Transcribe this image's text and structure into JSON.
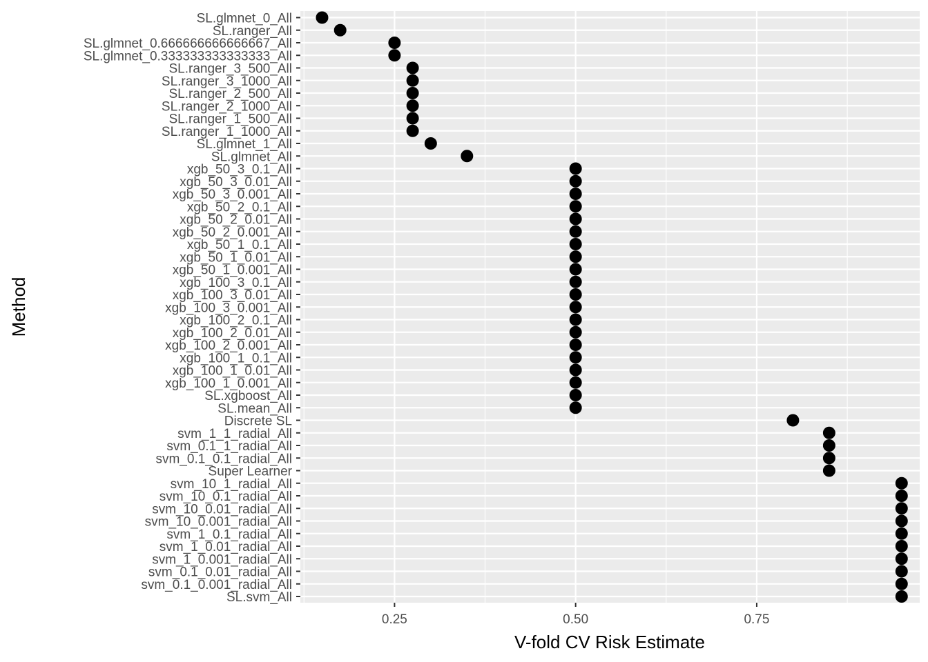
{
  "chart_data": {
    "type": "scatter",
    "xlabel": "V-fold CV Risk Estimate",
    "ylabel": "Method",
    "xlim": [
      0.12,
      0.975
    ],
    "x_ticks": [
      0.25,
      0.5,
      0.75
    ],
    "x_tick_labels": [
      "0.25",
      "0.50",
      "0.75"
    ],
    "grid": true,
    "panel_background": "#ebebeb",
    "grid_color": "#ffffff",
    "point_color": "#000000",
    "points": [
      {
        "method": "SL.glmnet_0_All",
        "risk": 0.15
      },
      {
        "method": "SL.ranger_All",
        "risk": 0.175
      },
      {
        "method": "SL.glmnet_0.666666666666667_All",
        "risk": 0.25
      },
      {
        "method": "SL.glmnet_0.333333333333333_All",
        "risk": 0.25
      },
      {
        "method": "SL.ranger_3_500_All",
        "risk": 0.275
      },
      {
        "method": "SL.ranger_3_1000_All",
        "risk": 0.275
      },
      {
        "method": "SL.ranger_2_500_All",
        "risk": 0.275
      },
      {
        "method": "SL.ranger_2_1000_All",
        "risk": 0.275
      },
      {
        "method": "SL.ranger_1_500_All",
        "risk": 0.275
      },
      {
        "method": "SL.ranger_1_1000_All",
        "risk": 0.275
      },
      {
        "method": "SL.glmnet_1_All",
        "risk": 0.3
      },
      {
        "method": "SL.glmnet_All",
        "risk": 0.35
      },
      {
        "method": "xgb_50_3_0.1_All",
        "risk": 0.5
      },
      {
        "method": "xgb_50_3_0.01_All",
        "risk": 0.5
      },
      {
        "method": "xgb_50_3_0.001_All",
        "risk": 0.5
      },
      {
        "method": "xgb_50_2_0.1_All",
        "risk": 0.5
      },
      {
        "method": "xgb_50_2_0.01_All",
        "risk": 0.5
      },
      {
        "method": "xgb_50_2_0.001_All",
        "risk": 0.5
      },
      {
        "method": "xgb_50_1_0.1_All",
        "risk": 0.5
      },
      {
        "method": "xgb_50_1_0.01_All",
        "risk": 0.5
      },
      {
        "method": "xgb_50_1_0.001_All",
        "risk": 0.5
      },
      {
        "method": "xgb_100_3_0.1_All",
        "risk": 0.5
      },
      {
        "method": "xgb_100_3_0.01_All",
        "risk": 0.5
      },
      {
        "method": "xgb_100_3_0.001_All",
        "risk": 0.5
      },
      {
        "method": "xgb_100_2_0.1_All",
        "risk": 0.5
      },
      {
        "method": "xgb_100_2_0.01_All",
        "risk": 0.5
      },
      {
        "method": "xgb_100_2_0.001_All",
        "risk": 0.5
      },
      {
        "method": "xgb_100_1_0.1_All",
        "risk": 0.5
      },
      {
        "method": "xgb_100_1_0.01_All",
        "risk": 0.5
      },
      {
        "method": "xgb_100_1_0.001_All",
        "risk": 0.5
      },
      {
        "method": "SL.xgboost_All",
        "risk": 0.5
      },
      {
        "method": "SL.mean_All",
        "risk": 0.5
      },
      {
        "method": "Discrete SL",
        "risk": 0.8
      },
      {
        "method": "svm_1_1_radial_All",
        "risk": 0.85
      },
      {
        "method": "svm_0.1_1_radial_All",
        "risk": 0.85
      },
      {
        "method": "svm_0.1_0.1_radial_All",
        "risk": 0.85
      },
      {
        "method": "Super Learner",
        "risk": 0.85
      },
      {
        "method": "svm_10_1_radial_All",
        "risk": 0.95
      },
      {
        "method": "svm_10_0.1_radial_All",
        "risk": 0.95
      },
      {
        "method": "svm_10_0.01_radial_All",
        "risk": 0.95
      },
      {
        "method": "svm_10_0.001_radial_All",
        "risk": 0.95
      },
      {
        "method": "svm_1_0.1_radial_All",
        "risk": 0.95
      },
      {
        "method": "svm_1_0.01_radial_All",
        "risk": 0.95
      },
      {
        "method": "svm_1_0.001_radial_All",
        "risk": 0.95
      },
      {
        "method": "svm_0.1_0.01_radial_All",
        "risk": 0.95
      },
      {
        "method": "svm_0.1_0.001_radial_All",
        "risk": 0.95
      },
      {
        "method": "SL.svm_All",
        "risk": 0.95
      }
    ]
  }
}
